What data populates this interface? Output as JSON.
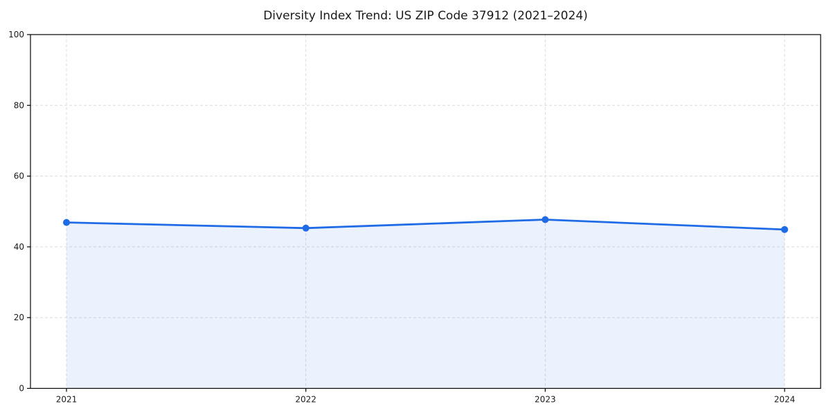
{
  "chart_data": {
    "type": "area",
    "title": "Diversity Index Trend: US ZIP Code 37912 (2021–2024)",
    "categories": [
      "2021",
      "2022",
      "2023",
      "2024"
    ],
    "series": [
      {
        "name": "Diversity Index",
        "values": [
          46.9,
          45.3,
          47.7,
          44.9
        ]
      }
    ],
    "xlabel": "",
    "ylabel": "",
    "ylim": [
      0,
      100
    ],
    "yticks": [
      0,
      20,
      40,
      60,
      80,
      100
    ],
    "grid": true,
    "grid_style": "dashed",
    "legend": "none",
    "colors": {
      "line": "#1f6be6",
      "marker": "#1f6be6",
      "fill": "rgba(31,107,230,0.09)",
      "grid": "#dcdcdc",
      "axis": "#000000",
      "tick_text": "#1a1a1a",
      "background": "#ffffff"
    }
  }
}
